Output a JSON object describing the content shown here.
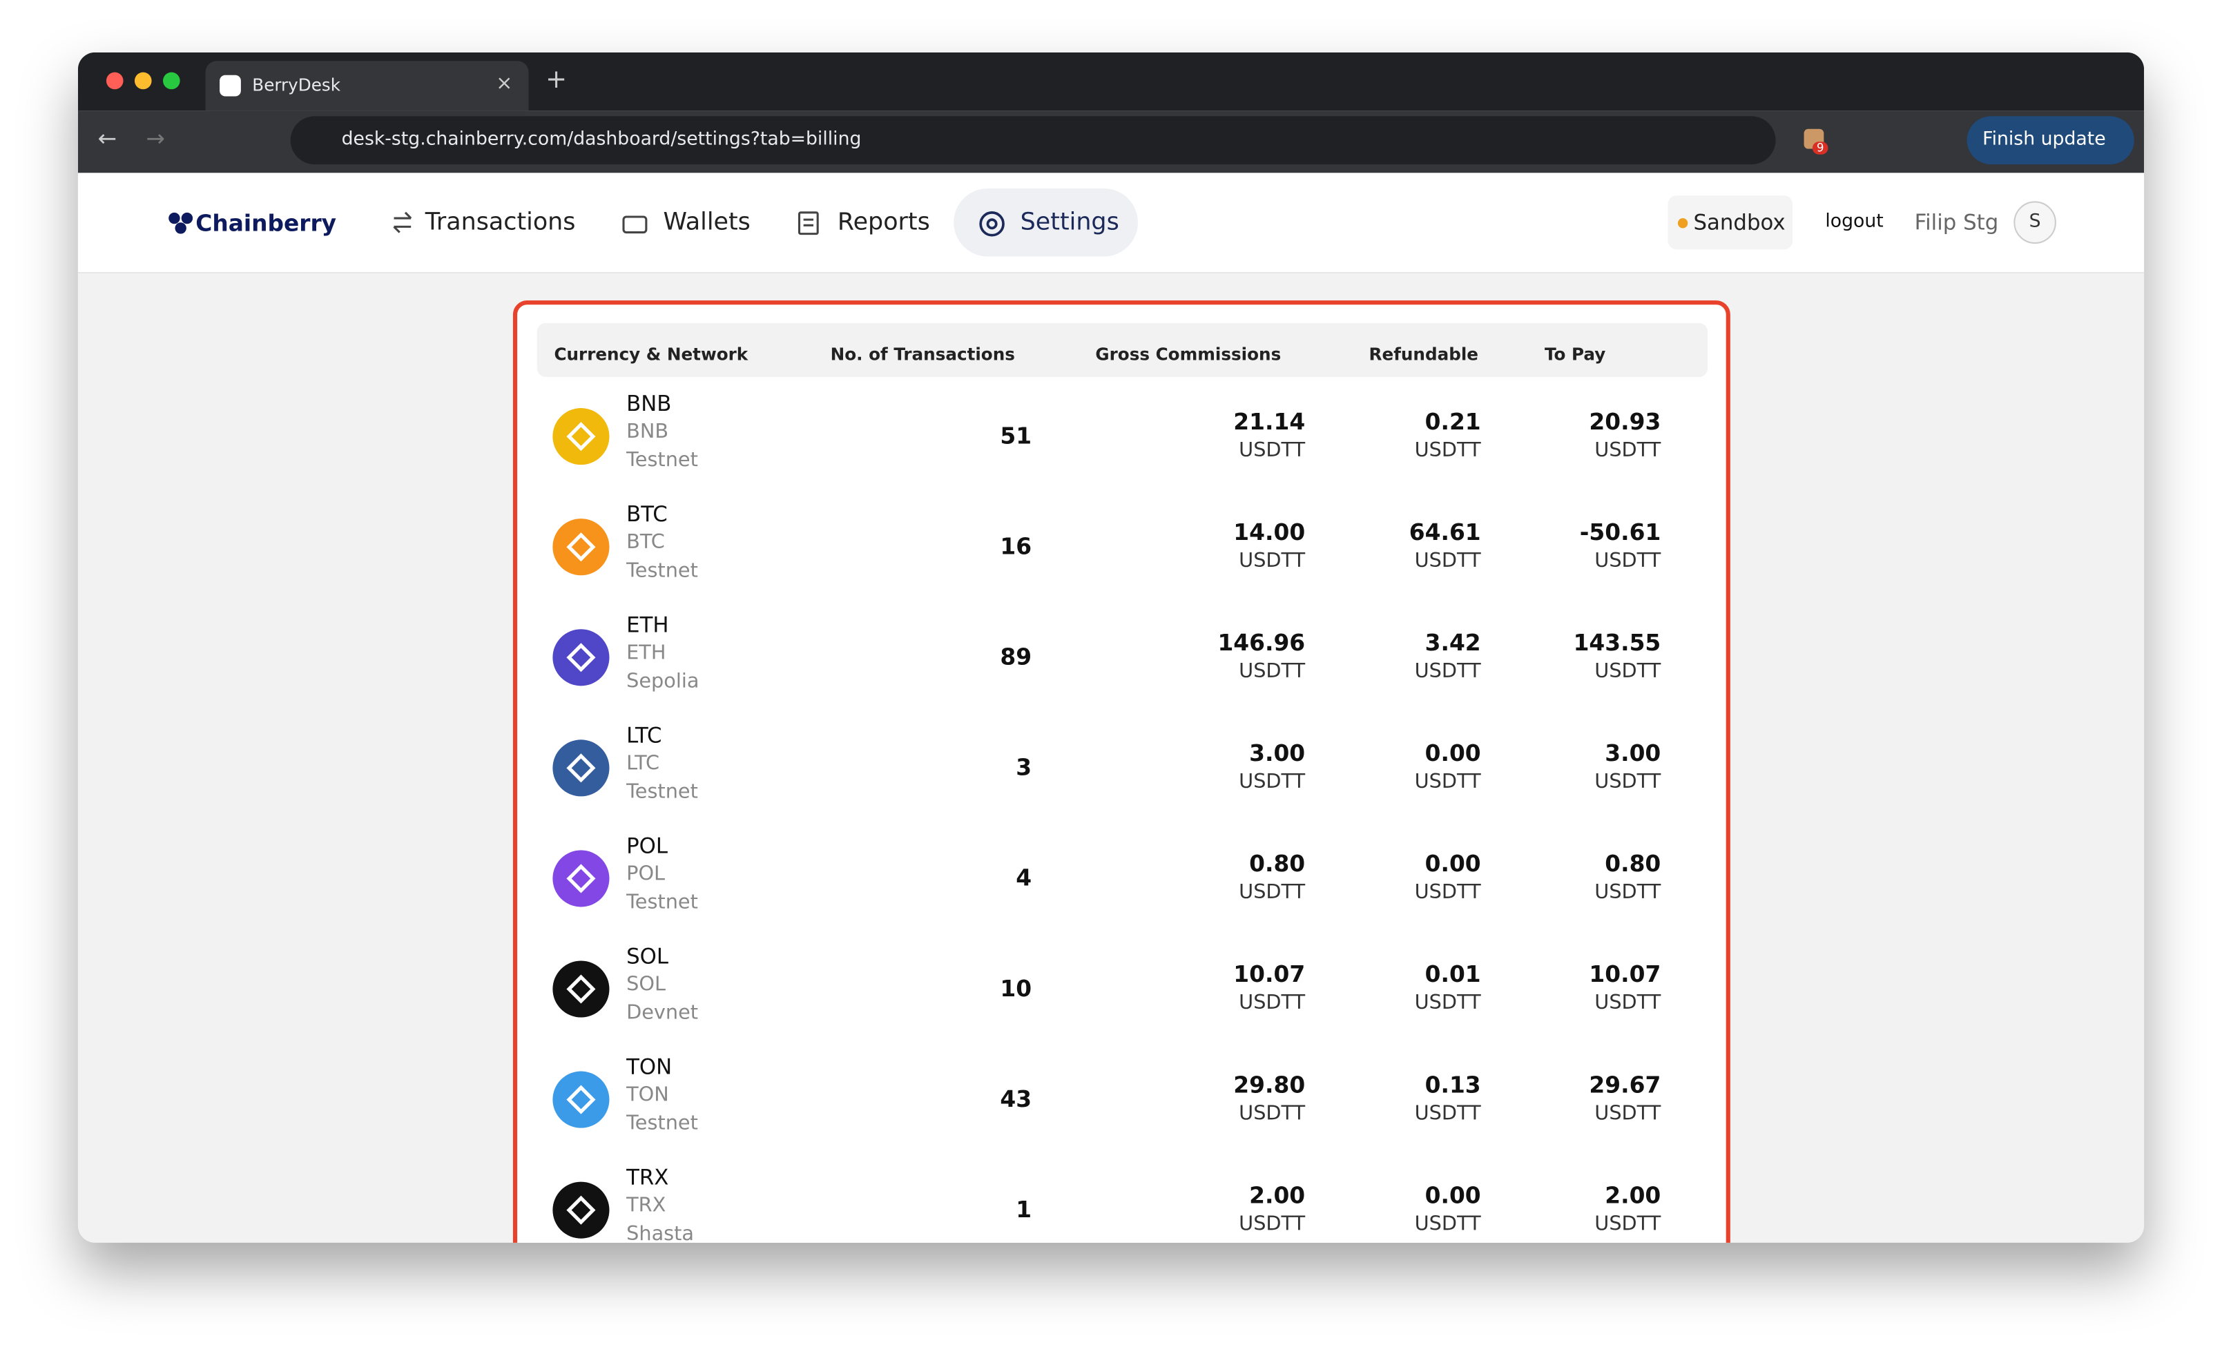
{
  "browser": {
    "tab_title": "BerryDesk",
    "url": "desk-stg.chainberry.com/dashboard/settings?tab=billing",
    "extension_badge": "9",
    "update_button": "Finish update"
  },
  "header": {
    "logo": "Chainberry",
    "nav": [
      "Transactions",
      "Wallets",
      "Reports",
      "Settings"
    ],
    "environment": "Sandbox",
    "logout": "logout",
    "user": "Filip Stg",
    "avatar": "S"
  },
  "table": {
    "columns": [
      "Currency & Network",
      "No. of Transactions",
      "Gross Commissions",
      "Refundable",
      "To Pay"
    ],
    "rows": [
      {
        "currency": "BNB",
        "symbol": "BNB",
        "network": "Testnet",
        "icon_color": "#f0b90b",
        "transactions": 51,
        "gross": "21.14",
        "gross_unit": "USDTT",
        "refundable": "0.21",
        "refundable_unit": "USDTT",
        "to_pay": "20.93",
        "to_pay_unit": "USDTT"
      },
      {
        "currency": "BTC",
        "symbol": "BTC",
        "network": "Testnet",
        "icon_color": "#f7931a",
        "transactions": 16,
        "gross": "14.00",
        "gross_unit": "USDTT",
        "refundable": "64.61",
        "refundable_unit": "USDTT",
        "to_pay": "-50.61",
        "to_pay_unit": "USDTT"
      },
      {
        "currency": "ETH",
        "symbol": "ETH",
        "network": "Sepolia",
        "icon_color": "#4f46c8",
        "transactions": 89,
        "gross": "146.96",
        "gross_unit": "USDTT",
        "refundable": "3.42",
        "refundable_unit": "USDTT",
        "to_pay": "143.55",
        "to_pay_unit": "USDTT"
      },
      {
        "currency": "LTC",
        "symbol": "LTC",
        "network": "Testnet",
        "icon_color": "#345d9d",
        "transactions": 3,
        "gross": "3.00",
        "gross_unit": "USDTT",
        "refundable": "0.00",
        "refundable_unit": "USDTT",
        "to_pay": "3.00",
        "to_pay_unit": "USDTT"
      },
      {
        "currency": "POL",
        "symbol": "POL",
        "network": "Testnet",
        "icon_color": "#8247e5",
        "transactions": 4,
        "gross": "0.80",
        "gross_unit": "USDTT",
        "refundable": "0.00",
        "refundable_unit": "USDTT",
        "to_pay": "0.80",
        "to_pay_unit": "USDTT"
      },
      {
        "currency": "SOL",
        "symbol": "SOL",
        "network": "Devnet",
        "icon_color": "#111111",
        "transactions": 10,
        "gross": "10.07",
        "gross_unit": "USDTT",
        "refundable": "0.01",
        "refundable_unit": "USDTT",
        "to_pay": "10.07",
        "to_pay_unit": "USDTT"
      },
      {
        "currency": "TON",
        "symbol": "TON",
        "network": "Testnet",
        "icon_color": "#3b9be8",
        "transactions": 43,
        "gross": "29.80",
        "gross_unit": "USDTT",
        "refundable": "0.13",
        "refundable_unit": "USDTT",
        "to_pay": "29.67",
        "to_pay_unit": "USDTT"
      },
      {
        "currency": "TRX",
        "symbol": "TRX",
        "network": "Shasta",
        "icon_color": "#111111",
        "transactions": 1,
        "gross": "2.00",
        "gross_unit": "USDTT",
        "refundable": "0.00",
        "refundable_unit": "USDTT",
        "to_pay": "2.00",
        "to_pay_unit": "USDTT"
      }
    ]
  }
}
